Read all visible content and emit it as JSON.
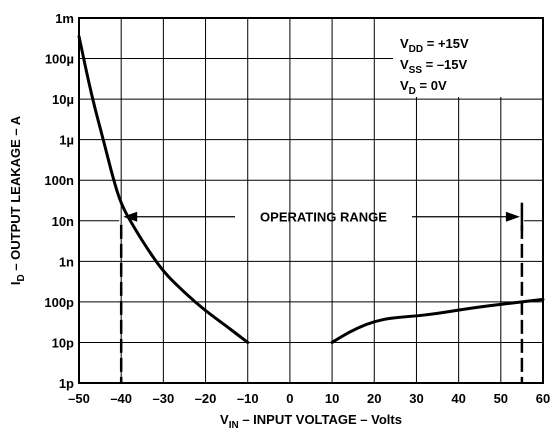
{
  "chart_data": {
    "type": "line",
    "title": "",
    "xlabel": {
      "base": "V",
      "sub": "IN",
      "rest": " – INPUT VOLTAGE – Volts"
    },
    "ylabel": {
      "base": "I",
      "sub": "D",
      "rest": " – OUTPUT LEAKAGE – A"
    },
    "xlim": [
      -50,
      60
    ],
    "x_ticks": [
      -50,
      -40,
      -30,
      -20,
      -10,
      0,
      10,
      20,
      30,
      40,
      50,
      60
    ],
    "x_tick_labels": [
      "–50",
      "–40",
      "–30",
      "–20",
      "–10",
      "0",
      "10",
      "20",
      "30",
      "40",
      "50",
      "60"
    ],
    "y_scale": "log",
    "ylim_exp": [
      -12,
      -3
    ],
    "y_ticks_exp": [
      -3,
      -4,
      -5,
      -6,
      -7,
      -8,
      -9,
      -10,
      -11,
      -12
    ],
    "y_tick_labels": [
      "1m",
      "100µ",
      "10µ",
      "1µ",
      "100n",
      "10n",
      "1n",
      "100p",
      "10p",
      "1p"
    ],
    "grid": true,
    "conditions": [
      {
        "base": "V",
        "sub": "DD",
        "rest": " = +15V"
      },
      {
        "base": "V",
        "sub": "SS",
        "rest": " = –15V"
      },
      {
        "base": "V",
        "sub": "D",
        "rest": " = 0V"
      }
    ],
    "operating_range": {
      "label": "OPERATING RANGE",
      "from": -40,
      "to": 55
    },
    "series": [
      {
        "segment": "negative",
        "points": [
          [
            -50,
            0.00035
          ],
          [
            -47,
            1.2e-05
          ],
          [
            -44,
            8e-07
          ],
          [
            -42,
            1.2e-07
          ],
          [
            -40,
            2.5e-08
          ],
          [
            -37,
            7e-09
          ],
          [
            -34,
            2.2e-09
          ],
          [
            -30,
            5.5e-10
          ],
          [
            -25,
            1.7e-10
          ],
          [
            -20,
            6e-11
          ],
          [
            -15,
            2.5e-11
          ],
          [
            -10,
            1e-11
          ]
        ]
      },
      {
        "segment": "positive",
        "points": [
          [
            10,
            1e-11
          ],
          [
            14,
            1.8e-11
          ],
          [
            18,
            2.8e-11
          ],
          [
            22,
            3.7e-11
          ],
          [
            26,
            4.2e-11
          ],
          [
            30,
            4.5e-11
          ],
          [
            35,
            5.2e-11
          ],
          [
            40,
            6.3e-11
          ],
          [
            45,
            7.5e-11
          ],
          [
            50,
            8.7e-11
          ],
          [
            55,
            1e-10
          ],
          [
            60,
            1.15e-10
          ]
        ]
      }
    ]
  }
}
